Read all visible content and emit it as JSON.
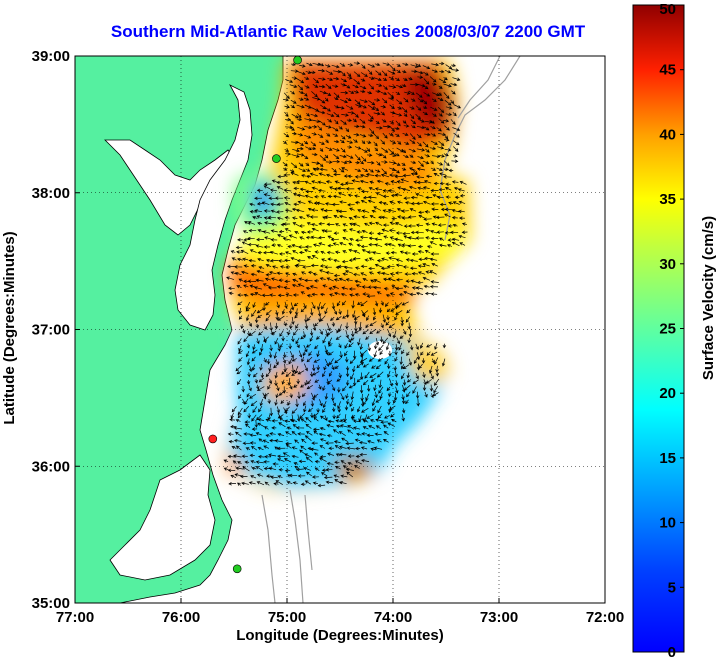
{
  "chart_data": {
    "type": "heatmap",
    "title": "Southern Mid-Atlantic Raw Velocities 2008/03/07 2200 GMT",
    "xlabel": "Longitude (Degrees:Minutes)",
    "ylabel": "Latitude (Degrees:Minutes)",
    "xlim": [
      -77,
      -72
    ],
    "ylim": [
      35,
      39
    ],
    "x_ticks": [
      -77,
      -76,
      -75,
      -74,
      -73,
      -72
    ],
    "x_tick_labels": [
      "77:00",
      "76:00",
      "75:00",
      "74:00",
      "73:00",
      "72:00"
    ],
    "y_ticks": [
      35,
      36,
      37,
      38,
      39
    ],
    "y_tick_labels": [
      "35:00",
      "36:00",
      "37:00",
      "38:00",
      "39:00"
    ],
    "grid": true,
    "colorbar": {
      "label": "Surface Velocity (cm/s)",
      "range": [
        0,
        50
      ],
      "ticks": [
        0,
        5,
        10,
        15,
        20,
        25,
        30,
        35,
        40,
        45,
        50
      ],
      "colormap": "jet"
    },
    "stations": [
      {
        "lon": -74.9,
        "lat": 38.97,
        "color": "#22cc22"
      },
      {
        "lon": -75.1,
        "lat": 38.25,
        "color": "#22cc22"
      },
      {
        "lon": -75.7,
        "lat": 36.2,
        "color": "#ff2020"
      },
      {
        "lon": -75.47,
        "lat": 35.25,
        "color": "#22cc22"
      }
    ],
    "land_color": "#55f0a0",
    "coast_color": "#000000",
    "bathymetry_color": "#a0a0a0"
  }
}
